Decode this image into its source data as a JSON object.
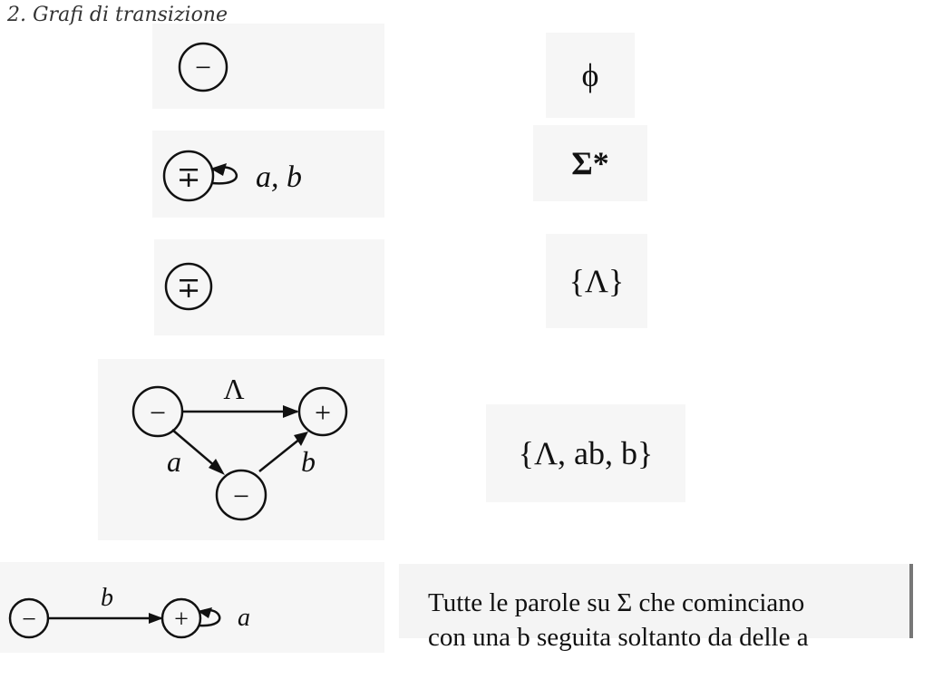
{
  "heading": "2. Grafi di transizione",
  "rows": [
    {
      "graph": {
        "state_label": "−",
        "type": "start"
      },
      "language": "ϕ"
    },
    {
      "graph": {
        "state_label": "∓",
        "type": "start-final",
        "loop_label": "a, b"
      },
      "language": "Σ*"
    },
    {
      "graph": {
        "state_label": "∓",
        "type": "start-final"
      },
      "language": "{Λ}"
    },
    {
      "graph": {
        "states": [
          "−",
          "+",
          "−"
        ],
        "edge_labels": [
          "Λ",
          "a",
          "b"
        ]
      },
      "language": "{Λ, ab, b}"
    },
    {
      "graph": {
        "states": [
          "−",
          "+"
        ],
        "edge_label": "b",
        "loop_label": "a"
      },
      "language_lines": [
        "Tutte le parole su Σ che cominciano",
        "con una b seguita soltanto da delle a"
      ]
    }
  ]
}
